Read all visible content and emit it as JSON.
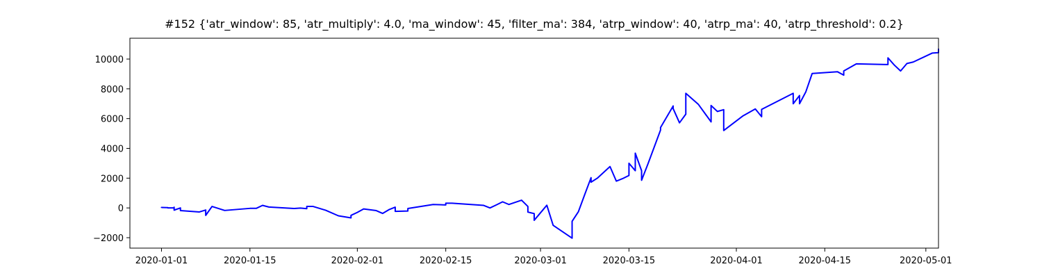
{
  "chart_data": {
    "type": "line",
    "title": "#152 {'atr_window': 85, 'atr_multiply': 4.0, 'ma_window': 45, 'filter_ma': 384, 'atrp_window': 40, 'atrp_ma': 40, 'atrp_threshold': 0.2}",
    "xlabel": "",
    "ylabel": "",
    "x_scale": "date",
    "xlim": [
      "2019-12-27",
      "2020-05-03"
    ],
    "ylim": [
      -2700,
      11400
    ],
    "grid": false,
    "line_color": "#0000ff",
    "x_ticks": [
      {
        "value": "2020-01-01",
        "label": "2020-01-01"
      },
      {
        "value": "2020-01-15",
        "label": "2020-01-15"
      },
      {
        "value": "2020-02-01",
        "label": "2020-02-01"
      },
      {
        "value": "2020-02-15",
        "label": "2020-02-15"
      },
      {
        "value": "2020-03-01",
        "label": "2020-03-01"
      },
      {
        "value": "2020-03-15",
        "label": "2020-03-15"
      },
      {
        "value": "2020-04-01",
        "label": "2020-04-01"
      },
      {
        "value": "2020-04-15",
        "label": "2020-04-15"
      },
      {
        "value": "2020-05-01",
        "label": "2020-05-01"
      }
    ],
    "y_ticks": [
      {
        "value": -2000,
        "label": "−2000"
      },
      {
        "value": 0,
        "label": "0"
      },
      {
        "value": 2000,
        "label": "2000"
      },
      {
        "value": 4000,
        "label": "4000"
      },
      {
        "value": 6000,
        "label": "6000"
      },
      {
        "value": 8000,
        "label": "8000"
      },
      {
        "value": 10000,
        "label": "10000"
      }
    ],
    "series": [
      {
        "points": [
          [
            "2020-01-01",
            0
          ],
          [
            "2020-01-01",
            30
          ],
          [
            "2020-01-02",
            20
          ],
          [
            "2020-01-02",
            0
          ],
          [
            "2020-01-03",
            10
          ],
          [
            "2020-01-03",
            -20
          ],
          [
            "2020-01-03",
            50
          ],
          [
            "2020-01-03",
            -150
          ],
          [
            "2020-01-04",
            0
          ],
          [
            "2020-01-04",
            -180
          ],
          [
            "2020-01-07",
            -270
          ],
          [
            "2020-01-08",
            -140
          ],
          [
            "2020-01-08",
            -500
          ],
          [
            "2020-01-09",
            100
          ],
          [
            "2020-01-11",
            -170
          ],
          [
            "2020-01-15",
            -30
          ],
          [
            "2020-01-16",
            -30
          ],
          [
            "2020-01-17",
            170
          ],
          [
            "2020-01-18",
            60
          ],
          [
            "2020-01-22",
            -40
          ],
          [
            "2020-01-23",
            -10
          ],
          [
            "2020-01-24",
            -50
          ],
          [
            "2020-01-24",
            100
          ],
          [
            "2020-01-25",
            100
          ],
          [
            "2020-01-27",
            -160
          ],
          [
            "2020-01-29",
            -530
          ],
          [
            "2020-01-31",
            -670
          ],
          [
            "2020-01-31",
            -500
          ],
          [
            "2020-02-01",
            -300
          ],
          [
            "2020-02-02",
            -70
          ],
          [
            "2020-02-04",
            -180
          ],
          [
            "2020-02-05",
            -370
          ],
          [
            "2020-02-06",
            -120
          ],
          [
            "2020-02-07",
            50
          ],
          [
            "2020-02-07",
            -230
          ],
          [
            "2020-02-08",
            -220
          ],
          [
            "2020-02-09",
            -210
          ],
          [
            "2020-02-09",
            -40
          ],
          [
            "2020-02-13",
            230
          ],
          [
            "2020-02-15",
            200
          ],
          [
            "2020-02-15",
            320
          ],
          [
            "2020-02-16",
            320
          ],
          [
            "2020-02-21",
            170
          ],
          [
            "2020-02-22",
            0
          ],
          [
            "2020-02-23",
            200
          ],
          [
            "2020-02-24",
            410
          ],
          [
            "2020-02-25",
            230
          ],
          [
            "2020-02-27",
            520
          ],
          [
            "2020-02-28",
            100
          ],
          [
            "2020-02-28",
            -280
          ],
          [
            "2020-02-29",
            -380
          ],
          [
            "2020-02-29",
            -830
          ],
          [
            "2020-03-02",
            180
          ],
          [
            "2020-03-03",
            -1170
          ],
          [
            "2020-03-06",
            -2030
          ],
          [
            "2020-03-06",
            -900
          ],
          [
            "2020-03-07",
            -250
          ],
          [
            "2020-03-08",
            900
          ],
          [
            "2020-03-09",
            2030
          ],
          [
            "2020-03-09",
            1730
          ],
          [
            "2020-03-10",
            2000
          ],
          [
            "2020-03-12",
            2780
          ],
          [
            "2020-03-13",
            1800
          ],
          [
            "2020-03-14",
            1970
          ],
          [
            "2020-03-15",
            2180
          ],
          [
            "2020-03-15",
            3000
          ],
          [
            "2020-03-16",
            2500
          ],
          [
            "2020-03-16",
            3680
          ],
          [
            "2020-03-17",
            2500
          ],
          [
            "2020-03-17",
            1860
          ],
          [
            "2020-03-18",
            2950
          ],
          [
            "2020-03-20",
            5230
          ],
          [
            "2020-03-20",
            5400
          ],
          [
            "2020-03-22",
            6850
          ],
          [
            "2020-03-22",
            6670
          ],
          [
            "2020-03-23",
            5720
          ],
          [
            "2020-03-24",
            6300
          ],
          [
            "2020-03-24",
            7700
          ],
          [
            "2020-03-26",
            6950
          ],
          [
            "2020-03-28",
            5780
          ],
          [
            "2020-03-28",
            6880
          ],
          [
            "2020-03-29",
            6480
          ],
          [
            "2020-03-30",
            6600
          ],
          [
            "2020-03-30",
            5200
          ],
          [
            "2020-04-02",
            6170
          ],
          [
            "2020-04-04",
            6650
          ],
          [
            "2020-04-05",
            6130
          ],
          [
            "2020-04-05",
            6620
          ],
          [
            "2020-04-10",
            7700
          ],
          [
            "2020-04-10",
            7000
          ],
          [
            "2020-04-11",
            7550
          ],
          [
            "2020-04-11",
            7000
          ],
          [
            "2020-04-12",
            7800
          ],
          [
            "2020-04-13",
            9030
          ],
          [
            "2020-04-17",
            9150
          ],
          [
            "2020-04-18",
            8920
          ],
          [
            "2020-04-18",
            9200
          ],
          [
            "2020-04-20",
            9680
          ],
          [
            "2020-04-25",
            9630
          ],
          [
            "2020-04-25",
            10080
          ],
          [
            "2020-04-26",
            9600
          ],
          [
            "2020-04-27",
            9200
          ],
          [
            "2020-04-28",
            9700
          ],
          [
            "2020-04-29",
            9800
          ],
          [
            "2020-05-02",
            10400
          ],
          [
            "2020-05-03",
            10430
          ],
          [
            "2020-05-03",
            10700
          ]
        ]
      }
    ]
  }
}
